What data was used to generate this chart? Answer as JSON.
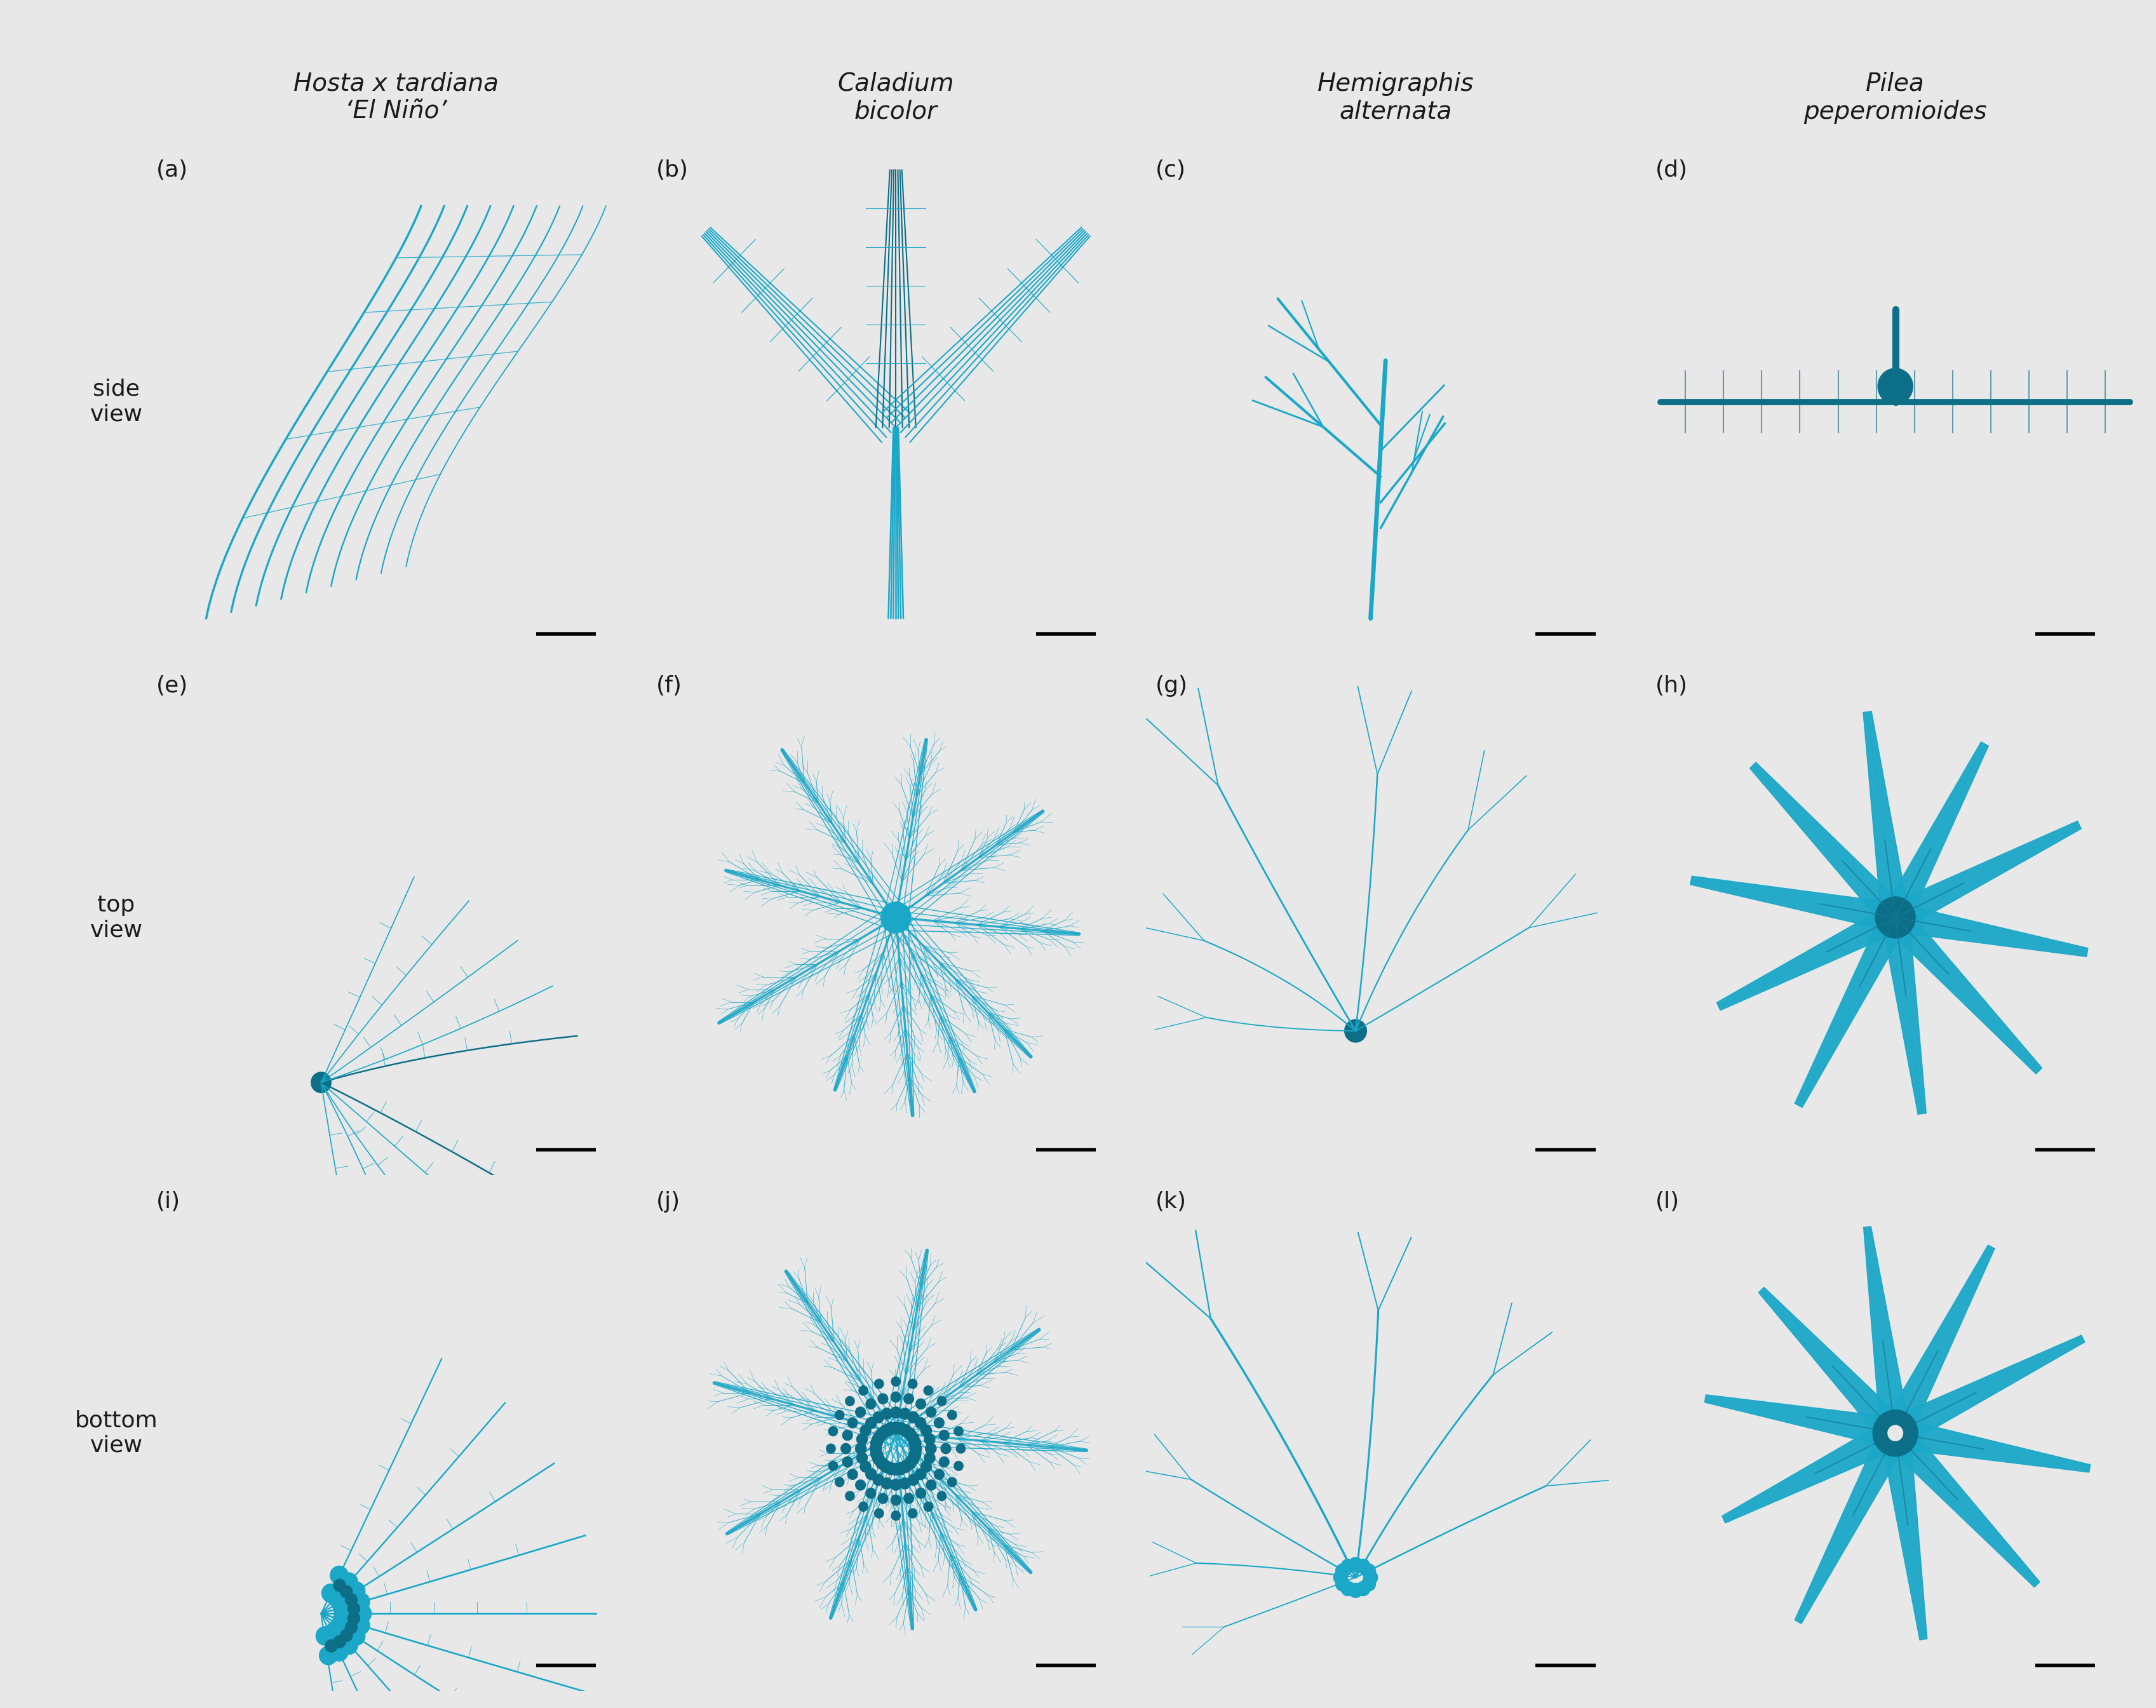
{
  "col_headers": [
    "Hosta x tardiana\n‘El Niño’",
    "Caladium\nbicolor",
    "Hemigraphis\nalternata",
    "Pilea\npeperomioides"
  ],
  "row_labels": [
    "side\nview",
    "top\nview",
    "bottom\nview"
  ],
  "panel_labels": [
    [
      "(a)",
      "(b)",
      "(c)",
      "(d)"
    ],
    [
      "(e)",
      "(f)",
      "(g)",
      "(h)"
    ],
    [
      "(i)",
      "(j)",
      "(k)",
      "(l)"
    ]
  ],
  "bg_color": "#e8e8e8",
  "label_col_color": "#d4d4d4",
  "border_color": "#2a2a2a",
  "text_color": "#1a1a1a",
  "teal": "#1aa7c8",
  "dark_teal": "#0d6e87",
  "header_fontsize": 28,
  "label_fontsize": 26,
  "panel_label_fontsize": 26,
  "scalebar_fontsize": 18,
  "figsize": [
    33.94,
    26.89
  ]
}
